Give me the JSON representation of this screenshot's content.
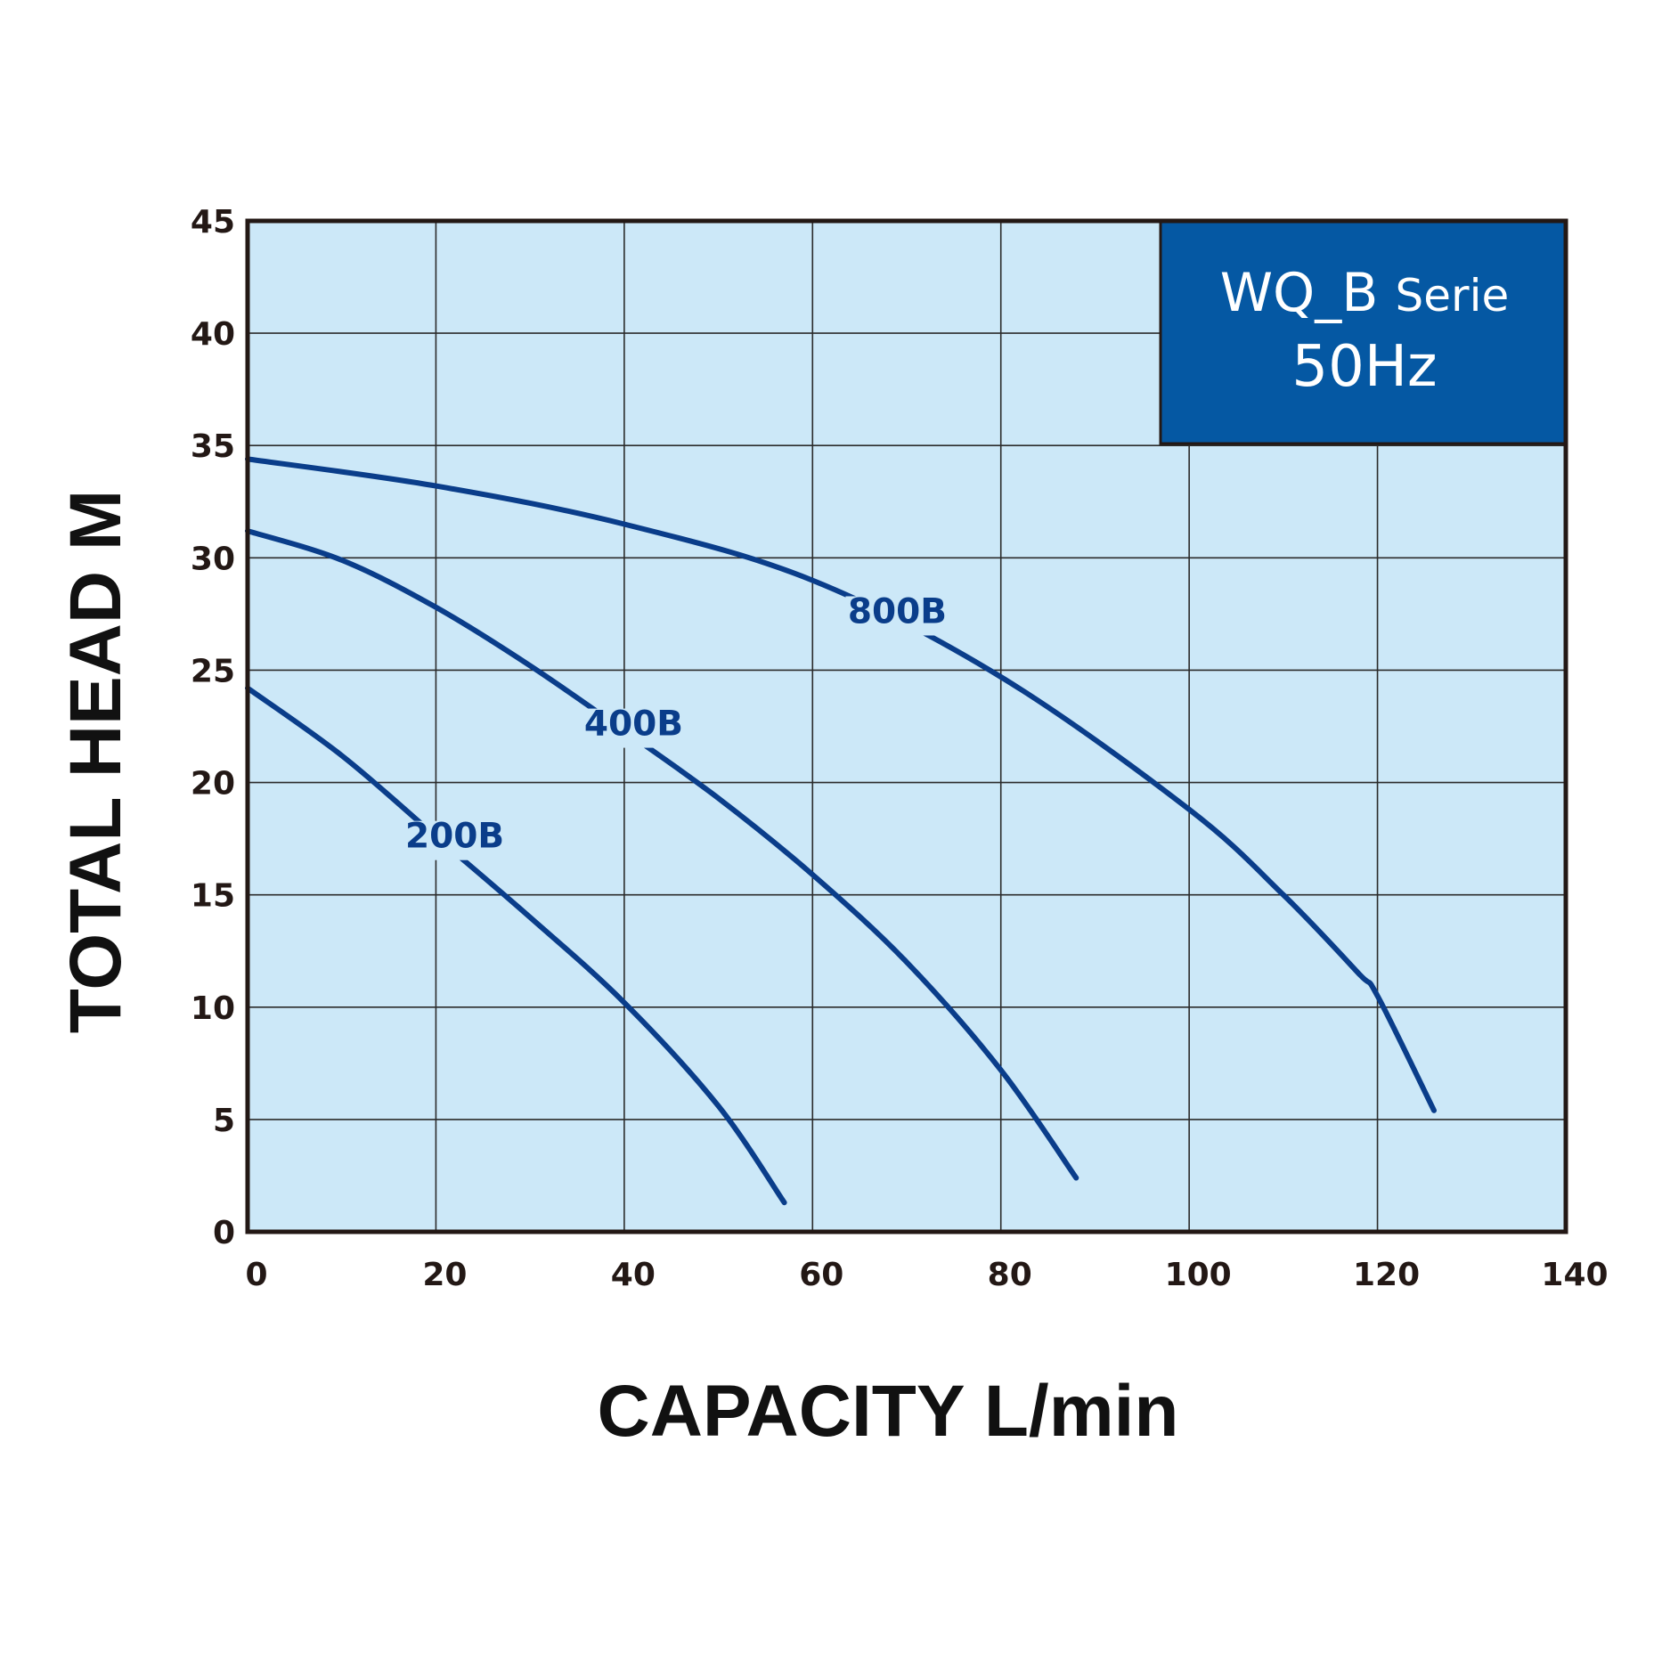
{
  "chart_data": {
    "type": "line",
    "title": "",
    "xlabel": "CAPACITY L/min",
    "ylabel": "TOTAL HEAD M",
    "xlim": [
      0,
      140
    ],
    "ylim": [
      0,
      45
    ],
    "xticks": [
      0,
      20,
      40,
      60,
      80,
      100,
      120,
      140
    ],
    "yticks": [
      0,
      5,
      10,
      15,
      20,
      25,
      30,
      35,
      40,
      45
    ],
    "grid": true,
    "legend": {
      "placement": "top-right",
      "line1_main": "WQ_B",
      "line1_small": "Serie",
      "line2": "50Hz"
    },
    "series": [
      {
        "name": "200B",
        "label_at": [
          22,
          17.1
        ],
        "x": [
          0,
          10,
          20,
          30,
          40,
          50,
          57
        ],
        "y": [
          24.2,
          21.2,
          17.6,
          14.0,
          10.2,
          5.6,
          1.3
        ]
      },
      {
        "name": "400B",
        "label_at": [
          41,
          22.1
        ],
        "x": [
          0,
          10,
          20,
          30,
          40,
          50,
          60,
          70,
          80,
          88
        ],
        "y": [
          31.2,
          29.9,
          27.8,
          25.2,
          22.3,
          19.3,
          15.9,
          12.0,
          7.2,
          2.4
        ]
      },
      {
        "name": "800B",
        "label_at": [
          69,
          27.1
        ],
        "x": [
          0,
          20,
          40,
          60,
          80,
          100,
          110,
          118,
          120,
          126
        ],
        "y": [
          34.4,
          33.2,
          31.5,
          29.0,
          24.7,
          18.8,
          15.0,
          11.5,
          10.5,
          5.4
        ]
      }
    ],
    "colors": {
      "plot_bg": "#cce8f8",
      "grid": "#2b2b2b",
      "frame": "#231815",
      "line": "#0a3d8a",
      "legend_bg": "#0558a3"
    }
  }
}
